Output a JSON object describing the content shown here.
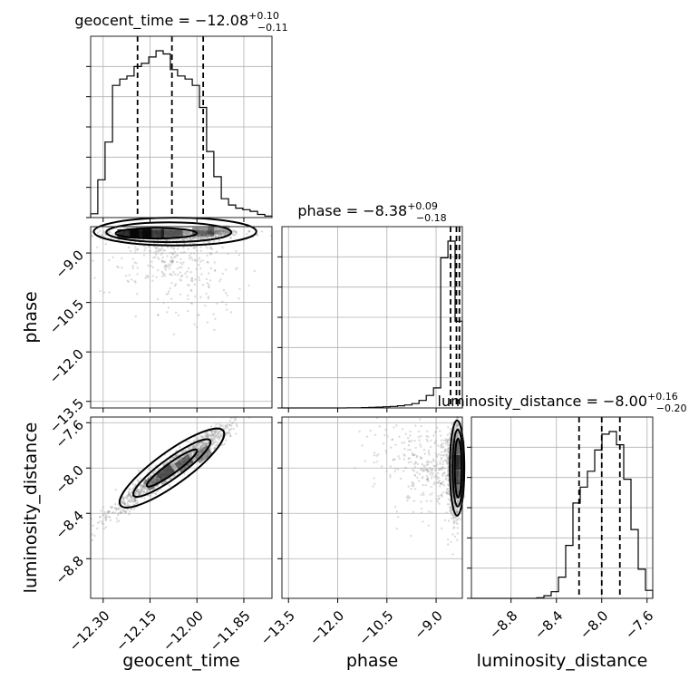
{
  "chart_data": {
    "type": "corner",
    "parameters": [
      "geocent_time",
      "phase",
      "luminosity_distance"
    ],
    "titles": [
      {
        "param": "geocent_time",
        "prefix": "geocent_time = ",
        "median": "−12.08",
        "plus": "+0.10",
        "minus": "−0.11"
      },
      {
        "param": "phase",
        "prefix": "phase = ",
        "median": "−8.38",
        "plus": "+0.09",
        "minus": "−0.18"
      },
      {
        "param": "luminosity_distance",
        "prefix": "luminosity_distance = ",
        "median": "−8.00",
        "plus": "+0.16",
        "minus": "−0.20"
      }
    ],
    "axes": {
      "geocent_time": {
        "range": [
          -12.34,
          -11.76
        ],
        "ticks": [
          -12.3,
          -12.15,
          -12.0,
          -11.85
        ],
        "tick_labels": [
          "−12.30",
          "−12.15",
          "−12.00",
          "−11.85"
        ]
      },
      "phase": {
        "range": [
          -13.7,
          -8.2
        ],
        "ticks": [
          -13.5,
          -12.0,
          -10.5,
          -9.0
        ],
        "tick_labels": [
          "−13.5",
          "−12.0",
          "−10.5",
          "−9.0"
        ]
      },
      "luminosity_distance": {
        "range": [
          -9.15,
          -7.55
        ],
        "ticks": [
          -8.8,
          -8.4,
          -8.0,
          -7.6
        ],
        "tick_labels": [
          "−8.8",
          "−8.4",
          "−8.0",
          "−7.6"
        ]
      }
    },
    "histograms": {
      "geocent_time": {
        "bin_edges": [
          -12.34,
          -12.317,
          -12.294,
          -12.27,
          -12.247,
          -12.224,
          -12.201,
          -12.178,
          -12.154,
          -12.131,
          -12.108,
          -12.085,
          -12.062,
          -12.038,
          -12.015,
          -11.992,
          -11.969,
          -11.946,
          -11.922,
          -11.899,
          -11.876,
          -11.853,
          -11.83,
          -11.806,
          -11.783,
          -11.76
        ],
        "counts": [
          12,
          120,
          240,
          420,
          440,
          450,
          480,
          490,
          510,
          530,
          520,
          470,
          450,
          440,
          420,
          350,
          210,
          130,
          60,
          40,
          30,
          25,
          20,
          10,
          5
        ],
        "quantiles": [
          -12.19,
          -12.08,
          -11.98
        ]
      },
      "phase": {
        "bin_edges": [
          -13.7,
          -13.48,
          -13.26,
          -13.04,
          -12.82,
          -12.6,
          -12.38,
          -12.16,
          -11.94,
          -11.72,
          -11.5,
          -11.28,
          -11.06,
          -10.84,
          -10.62,
          -10.4,
          -10.18,
          -9.96,
          -9.74,
          -9.52,
          -9.3,
          -9.08,
          -8.86,
          -8.64,
          -8.42,
          -8.2
        ],
        "counts": [
          0,
          0,
          0,
          0,
          0,
          0,
          0,
          0,
          0,
          1,
          1,
          2,
          3,
          5,
          7,
          9,
          13,
          18,
          26,
          45,
          75,
          120,
          900,
          1000,
          520
        ],
        "quantiles": [
          -8.56,
          -8.38,
          -8.29
        ]
      },
      "luminosity_distance": {
        "bin_edges": [
          -9.15,
          -9.086,
          -9.022,
          -8.958,
          -8.894,
          -8.83,
          -8.766,
          -8.702,
          -8.638,
          -8.574,
          -8.51,
          -8.446,
          -8.382,
          -8.318,
          -8.254,
          -8.19,
          -8.126,
          -8.062,
          -7.998,
          -7.934,
          -7.87,
          -7.806,
          -7.742,
          -7.678,
          -7.614,
          -7.55
        ],
        "counts": [
          0,
          0,
          0,
          0,
          0,
          0,
          0,
          0,
          0,
          2,
          10,
          25,
          80,
          200,
          360,
          420,
          480,
          560,
          620,
          630,
          580,
          450,
          260,
          110,
          30
        ],
        "quantiles": [
          -8.2,
          -8.0,
          -7.84
        ]
      }
    },
    "scatter_pairs": [
      {
        "x": "geocent_time",
        "y": "phase"
      },
      {
        "x": "geocent_time",
        "y": "luminosity_distance"
      },
      {
        "x": "phase",
        "y": "luminosity_distance"
      }
    ],
    "axis_labels": {
      "x": [
        "geocent_time",
        "phase",
        "luminosity_distance"
      ],
      "y": [
        "phase",
        "luminosity_distance"
      ]
    },
    "grid": true
  }
}
